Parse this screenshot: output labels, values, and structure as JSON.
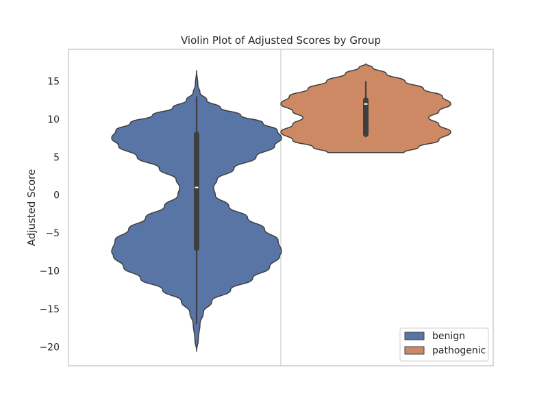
{
  "chart_data": {
    "type": "violin",
    "title": "Violin Plot of Adjusted Scores by Group",
    "xlabel": "",
    "ylabel": "Adjusted Score",
    "ylim": [
      -22.5,
      19.2
    ],
    "yticks": [
      15,
      10,
      5,
      0,
      -5,
      -10,
      -15,
      -20
    ],
    "ytick_labels": [
      "15",
      "10",
      "5",
      "0",
      "−5",
      "−10",
      "−15",
      "−20"
    ],
    "grid": false,
    "legend_position": "lower-right",
    "series": [
      {
        "name": "benign",
        "color": "#5875a6",
        "y_min": -20.6,
        "y_max": 16.4,
        "q1": -7.0,
        "median": 1.0,
        "q3": 8.0,
        "whisker_low": -17.0,
        "whisker_high": 13.0,
        "density_profile": [
          [
            -20.6,
            0.0
          ],
          [
            -19.0,
            0.02
          ],
          [
            -17.0,
            0.04
          ],
          [
            -15.5,
            0.08
          ],
          [
            -14.0,
            0.18
          ],
          [
            -12.5,
            0.4
          ],
          [
            -11.0,
            0.66
          ],
          [
            -9.5,
            0.86
          ],
          [
            -8.0,
            0.98
          ],
          [
            -7.5,
            1.0
          ],
          [
            -6.0,
            0.96
          ],
          [
            -4.5,
            0.8
          ],
          [
            -3.0,
            0.6
          ],
          [
            -1.5,
            0.38
          ],
          [
            0.0,
            0.22
          ],
          [
            1.0,
            0.2
          ],
          [
            2.0,
            0.24
          ],
          [
            3.5,
            0.44
          ],
          [
            5.0,
            0.7
          ],
          [
            6.5,
            0.92
          ],
          [
            7.5,
            1.0
          ],
          [
            8.5,
            0.95
          ],
          [
            9.5,
            0.78
          ],
          [
            10.5,
            0.52
          ],
          [
            11.5,
            0.28
          ],
          [
            12.5,
            0.12
          ],
          [
            13.5,
            0.04
          ],
          [
            14.5,
            0.015
          ],
          [
            16.4,
            0.0
          ]
        ]
      },
      {
        "name": "pathogenic",
        "color": "#cc8963",
        "y_min": 5.6,
        "y_max": 17.3,
        "q1": 8.0,
        "median": 12.0,
        "q3": 12.5,
        "whisker_low": 8.0,
        "whisker_high": 15.0,
        "density_profile": [
          [
            5.6,
            0.45
          ],
          [
            6.3,
            0.62
          ],
          [
            7.2,
            0.86
          ],
          [
            8.3,
            1.0
          ],
          [
            9.3,
            0.86
          ],
          [
            10.2,
            0.74
          ],
          [
            11.0,
            0.86
          ],
          [
            12.0,
            1.0
          ],
          [
            13.0,
            0.9
          ],
          [
            14.0,
            0.68
          ],
          [
            15.0,
            0.46
          ],
          [
            16.0,
            0.24
          ],
          [
            16.8,
            0.08
          ],
          [
            17.3,
            0.0
          ]
        ]
      }
    ]
  }
}
